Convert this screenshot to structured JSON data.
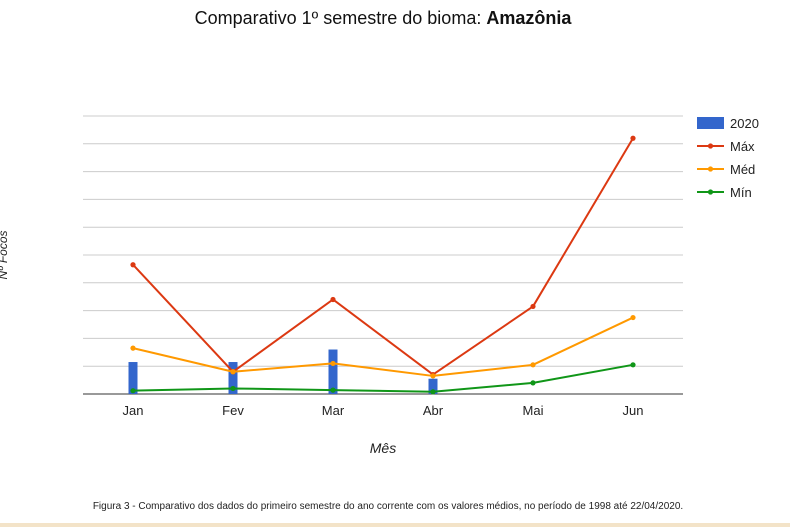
{
  "title": {
    "prefix": "Comparativo 1º semestre do bioma: ",
    "bold": "Amazônia"
  },
  "caption": "Figura 3 - Comparativo dos dados do primeiro semestre do ano corrente com os valores médios, no período de 1998 até 22/04/2020.",
  "chart_data": {
    "type": "bar+line",
    "categories": [
      "Jan",
      "Fev",
      "Mar",
      "Abr",
      "Mai",
      "Jun"
    ],
    "xlabel": "Mês",
    "ylabel": "Nº Focos",
    "ylim": [
      0,
      10000
    ],
    "gridlines": 10,
    "show_y_tick_labels": false,
    "grid": true,
    "legend_position": "right",
    "series": [
      {
        "name": "2020",
        "kind": "bar",
        "color": "#3366cc",
        "values": [
          1150,
          1150,
          1600,
          550,
          null,
          null
        ]
      },
      {
        "name": "Máx",
        "kind": "line",
        "color": "#dc3912",
        "values": [
          4650,
          800,
          3400,
          700,
          3150,
          9200
        ]
      },
      {
        "name": "Méd",
        "kind": "line",
        "color": "#ff9900",
        "values": [
          1650,
          800,
          1100,
          650,
          1050,
          2750
        ]
      },
      {
        "name": "Mín",
        "kind": "line",
        "color": "#109618",
        "values": [
          120,
          200,
          140,
          80,
          400,
          1050
        ]
      }
    ]
  }
}
